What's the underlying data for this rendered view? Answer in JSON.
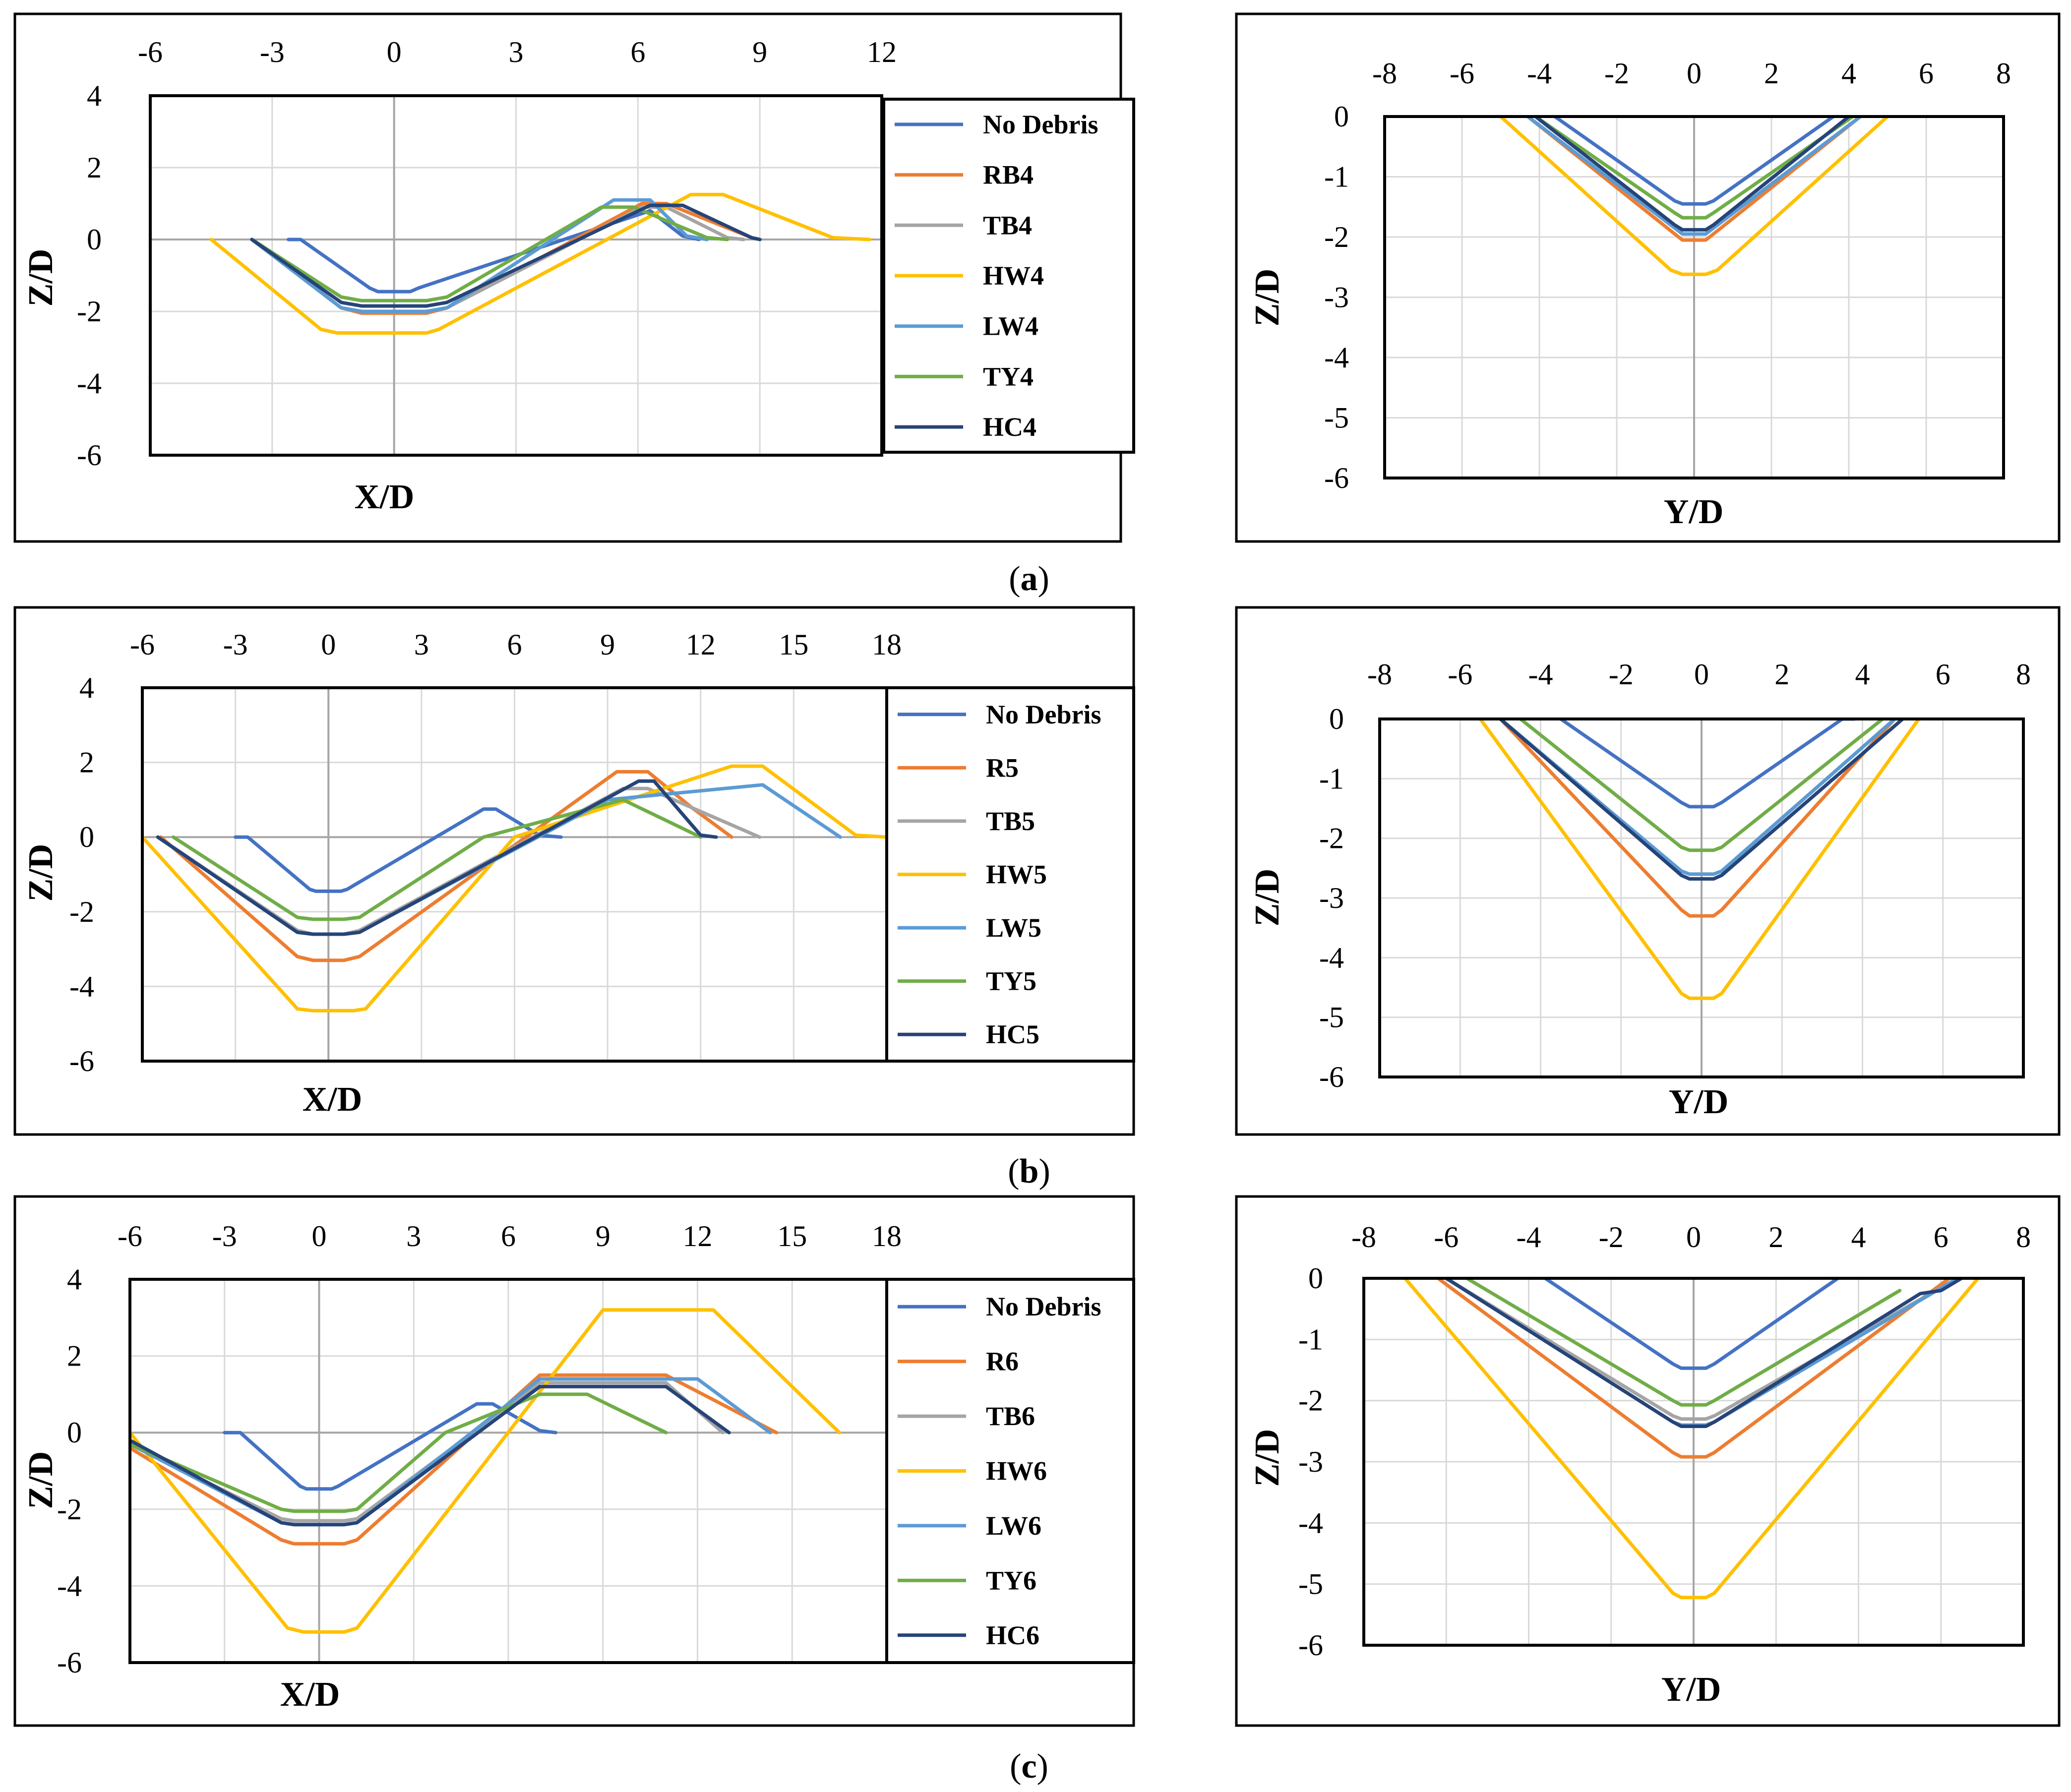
{
  "figure": {
    "captions": [
      {
        "letter": "a"
      },
      {
        "letter": "b"
      },
      {
        "letter": "c"
      }
    ]
  },
  "colors": {
    "No Debris": "#4472C4",
    "RB4": "#ED7D31",
    "R5": "#ED7D31",
    "R6": "#ED7D31",
    "TB4": "#A5A5A5",
    "TB5": "#A5A5A5",
    "TB6": "#A5A5A5",
    "HW4": "#FFC000",
    "HW5": "#FFC000",
    "HW6": "#FFC000",
    "LW4": "#5B9BD5",
    "LW5": "#5B9BD5",
    "LW6": "#5B9BD5",
    "TY4": "#70AD47",
    "TY5": "#70AD47",
    "TY6": "#70AD47",
    "HC4": "#264478",
    "HC5": "#264478",
    "HC6": "#264478"
  },
  "chart_data": [
    {
      "id": "a-left",
      "type": "line",
      "xlabel": "X/D",
      "ylabel": "Z/D",
      "xlim": [
        -6,
        12
      ],
      "ylim": [
        -6,
        4
      ],
      "xticks": [
        "-6",
        "-3",
        "0",
        "3",
        "6",
        "9",
        "12"
      ],
      "yticks": [
        "4",
        "2",
        "0",
        "-2",
        "-4",
        "-6"
      ],
      "legend": [
        "No Debris",
        "RB4",
        "TB4",
        "HW4",
        "LW4",
        "TY4",
        "HC4"
      ],
      "series": [
        {
          "name": "No Debris",
          "x": [
            -2.6,
            -2.3,
            -0.6,
            -0.4,
            0.4,
            0.6,
            6.3,
            7.1,
            7.5
          ],
          "y": [
            0,
            0,
            -1.35,
            -1.45,
            -1.45,
            -1.35,
            0.8,
            0.1,
            0
          ]
        },
        {
          "name": "RB4",
          "x": [
            -3.5,
            -1.3,
            -0.8,
            0.8,
            1.3,
            6.1,
            6.7,
            8.8,
            9.0
          ],
          "y": [
            0,
            -1.9,
            -2.05,
            -2.05,
            -1.9,
            1.0,
            1.0,
            0.05,
            0
          ]
        },
        {
          "name": "TB4",
          "x": [
            -3.5,
            -1.3,
            -0.8,
            0.8,
            1.3,
            6.1,
            6.7,
            8.2,
            8.6
          ],
          "y": [
            0,
            -1.9,
            -2.0,
            -2.0,
            -1.9,
            0.9,
            0.9,
            0.05,
            0
          ]
        },
        {
          "name": "HW4",
          "x": [
            -4.5,
            -1.8,
            -1.4,
            0.8,
            1.1,
            7.3,
            8.1,
            10.8,
            11.7
          ],
          "y": [
            0,
            -2.5,
            -2.6,
            -2.6,
            -2.5,
            1.25,
            1.25,
            0.05,
            0
          ]
        },
        {
          "name": "LW4",
          "x": [
            -3.5,
            -1.3,
            -0.8,
            0.8,
            1.3,
            5.4,
            6.3,
            7.2,
            7.7
          ],
          "y": [
            0,
            -1.9,
            -2.0,
            -2.0,
            -1.9,
            1.1,
            1.1,
            0.1,
            0
          ]
        },
        {
          "name": "TY4",
          "x": [
            -3.5,
            -1.3,
            -0.8,
            0.8,
            1.3,
            5.1,
            5.9,
            7.7,
            8.2
          ],
          "y": [
            0,
            -1.6,
            -1.7,
            -1.7,
            -1.6,
            0.9,
            0.9,
            0.05,
            0
          ]
        },
        {
          "name": "HC4",
          "x": [
            -3.5,
            -1.3,
            -0.8,
            0.8,
            1.3,
            6.3,
            7.1,
            8.8,
            9.0
          ],
          "y": [
            0,
            -1.75,
            -1.85,
            -1.85,
            -1.75,
            0.95,
            0.95,
            0.05,
            0
          ]
        }
      ]
    },
    {
      "id": "a-right",
      "type": "line",
      "xlabel": "Y/D",
      "ylabel": "Z/D",
      "xlim": [
        -8,
        8
      ],
      "ylim": [
        -6,
        0
      ],
      "xticks": [
        "-8",
        "-6",
        "-4",
        "-2",
        "0",
        "2",
        "4",
        "6",
        "8"
      ],
      "yticks": [
        "0",
        "-1",
        "-2",
        "-3",
        "-4",
        "-5",
        "-6"
      ],
      "series": [
        {
          "name": "No Debris",
          "x": [
            -3.6,
            -0.5,
            -0.3,
            0.3,
            0.5,
            3.6
          ],
          "y": [
            0,
            -1.4,
            -1.45,
            -1.45,
            -1.4,
            0
          ]
        },
        {
          "name": "RB4",
          "x": [
            -4.3,
            -0.5,
            -0.3,
            0.3,
            0.5,
            4.3
          ],
          "y": [
            0,
            -1.95,
            -2.05,
            -2.05,
            -1.95,
            0
          ]
        },
        {
          "name": "TB4",
          "x": [
            -4.3,
            -0.5,
            -0.3,
            0.3,
            0.5,
            4.3
          ],
          "y": [
            0,
            -1.85,
            -1.95,
            -1.95,
            -1.85,
            0
          ]
        },
        {
          "name": "HW4",
          "x": [
            -5.0,
            -0.6,
            -0.3,
            0.3,
            0.6,
            5.0
          ],
          "y": [
            0,
            -2.55,
            -2.62,
            -2.62,
            -2.55,
            0
          ]
        },
        {
          "name": "LW4",
          "x": [
            -4.3,
            -0.5,
            -0.3,
            0.3,
            0.5,
            4.3
          ],
          "y": [
            0,
            -1.85,
            -1.95,
            -1.95,
            -1.85,
            0
          ]
        },
        {
          "name": "TY4",
          "x": [
            -4.1,
            -0.5,
            -0.3,
            0.3,
            0.5,
            4.1
          ],
          "y": [
            0,
            -1.6,
            -1.68,
            -1.68,
            -1.6,
            0
          ]
        },
        {
          "name": "HC4",
          "x": [
            -4.1,
            -0.5,
            -0.3,
            0.3,
            0.5,
            4.0
          ],
          "y": [
            0,
            -1.8,
            -1.88,
            -1.88,
            -1.8,
            0
          ]
        }
      ]
    },
    {
      "id": "b-left",
      "type": "line",
      "xlabel": "X/D",
      "ylabel": "Z/D",
      "xlim": [
        -6,
        18
      ],
      "ylim": [
        -6,
        4
      ],
      "xticks": [
        "-6",
        "-3",
        "0",
        "3",
        "6",
        "9",
        "12",
        "15",
        "18"
      ],
      "yticks": [
        "4",
        "2",
        "0",
        "-2",
        "-4",
        "-6"
      ],
      "legend": [
        "No Debris",
        "R5",
        "TB5",
        "HW5",
        "LW5",
        "TY5",
        "HC5"
      ],
      "series": [
        {
          "name": "No Debris",
          "x": [
            -3.0,
            -2.6,
            -0.6,
            -0.4,
            0.4,
            0.6,
            5.0,
            5.4,
            6.8,
            7.5
          ],
          "y": [
            0,
            0,
            -1.4,
            -1.45,
            -1.45,
            -1.4,
            0.75,
            0.75,
            0.05,
            0
          ]
        },
        {
          "name": "R5",
          "x": [
            -5.4,
            -1.0,
            -0.5,
            0.5,
            1.0,
            9.3,
            10.3,
            11.7,
            13.0
          ],
          "y": [
            0,
            -3.2,
            -3.3,
            -3.3,
            -3.2,
            1.75,
            1.75,
            0.8,
            0
          ]
        },
        {
          "name": "TB5",
          "x": [
            -5.5,
            -1.0,
            -0.5,
            0.5,
            1.0,
            9.5,
            10.3,
            13.9
          ],
          "y": [
            0,
            -2.5,
            -2.6,
            -2.6,
            -2.5,
            1.3,
            1.3,
            0
          ]
        },
        {
          "name": "HW5",
          "x": [
            -6.0,
            -1.0,
            -0.5,
            0.8,
            1.2,
            6.0,
            13.0,
            14.0,
            17.0,
            18.0
          ],
          "y": [
            0,
            -4.6,
            -4.65,
            -4.65,
            -4.6,
            0,
            1.9,
            1.9,
            0.05,
            0
          ]
        },
        {
          "name": "LW5",
          "x": [
            -5.5,
            -1.0,
            -0.5,
            0.5,
            1.0,
            9.0,
            14.0,
            16.5
          ],
          "y": [
            0,
            -2.55,
            -2.6,
            -2.6,
            -2.55,
            1.0,
            1.4,
            0
          ]
        },
        {
          "name": "TY5",
          "x": [
            -5.0,
            -1.0,
            -0.5,
            0.5,
            1.0,
            5.0,
            9.5,
            12.0
          ],
          "y": [
            0,
            -2.15,
            -2.2,
            -2.2,
            -2.15,
            0,
            1.0,
            0
          ]
        },
        {
          "name": "HC5",
          "x": [
            -5.5,
            -1.0,
            -0.5,
            0.5,
            1.0,
            10.0,
            10.5,
            12.0,
            12.5
          ],
          "y": [
            0,
            -2.55,
            -2.6,
            -2.6,
            -2.55,
            1.5,
            1.5,
            0.05,
            0
          ]
        }
      ]
    },
    {
      "id": "b-right",
      "type": "line",
      "xlabel": "Y/D",
      "ylabel": "Z/D",
      "xlim": [
        -8,
        8
      ],
      "ylim": [
        -6,
        0
      ],
      "xticks": [
        "-8",
        "-6",
        "-4",
        "-2",
        "0",
        "2",
        "4",
        "6",
        "8"
      ],
      "yticks": [
        "0",
        "-1",
        "-2",
        "-3",
        "-4",
        "-5",
        "-6"
      ],
      "series": [
        {
          "name": "No Debris",
          "x": [
            -3.5,
            -0.5,
            -0.3,
            0.3,
            0.5,
            3.5,
            3.8
          ],
          "y": [
            0,
            -1.4,
            -1.47,
            -1.47,
            -1.4,
            0,
            0
          ]
        },
        {
          "name": "R5",
          "x": [
            -5.0,
            -0.5,
            -0.3,
            0.3,
            0.5,
            4.8
          ],
          "y": [
            0,
            -3.2,
            -3.3,
            -3.3,
            -3.2,
            0
          ]
        },
        {
          "name": "TB5",
          "x": [
            -5.0,
            -0.5,
            -0.3,
            0.3,
            0.5,
            4.8
          ],
          "y": [
            0,
            -2.55,
            -2.6,
            -2.6,
            -2.55,
            0
          ]
        },
        {
          "name": "HW5",
          "x": [
            -5.5,
            -0.5,
            -0.3,
            0.3,
            0.5,
            5.4
          ],
          "y": [
            0,
            -4.6,
            -4.68,
            -4.68,
            -4.6,
            0
          ]
        },
        {
          "name": "LW5",
          "x": [
            -5.0,
            -0.5,
            -0.3,
            0.3,
            0.5,
            4.8
          ],
          "y": [
            0,
            -2.55,
            -2.6,
            -2.6,
            -2.55,
            0
          ]
        },
        {
          "name": "TY5",
          "x": [
            -4.5,
            -0.5,
            -0.3,
            0.3,
            0.5,
            4.5
          ],
          "y": [
            0,
            -2.15,
            -2.2,
            -2.2,
            -2.15,
            0
          ]
        },
        {
          "name": "HC5",
          "x": [
            -5.0,
            -0.5,
            -0.3,
            0.3,
            0.5,
            5.0
          ],
          "y": [
            0,
            -2.62,
            -2.68,
            -2.68,
            -2.62,
            0
          ]
        }
      ]
    },
    {
      "id": "c-left",
      "type": "line",
      "xlabel": "X/D",
      "ylabel": "Z/D",
      "xlim": [
        -6,
        18
      ],
      "ylim": [
        -6,
        4
      ],
      "xticks": [
        "-6",
        "-3",
        "0",
        "3",
        "6",
        "9",
        "12",
        "15",
        "18"
      ],
      "yticks": [
        "4",
        "2",
        "0",
        "-2",
        "-4",
        "-6"
      ],
      "legend": [
        "No Debris",
        "R6",
        "TB6",
        "HW6",
        "LW6",
        "TY6",
        "HC6"
      ],
      "series": [
        {
          "name": "No Debris",
          "x": [
            -3.0,
            -2.5,
            -0.6,
            -0.4,
            0.4,
            0.6,
            5.0,
            5.5,
            7.0,
            7.5
          ],
          "y": [
            0,
            0,
            -1.4,
            -1.47,
            -1.47,
            -1.4,
            0.75,
            0.75,
            0.05,
            0
          ]
        },
        {
          "name": "R6",
          "x": [
            -6.0,
            -1.2,
            -0.8,
            0.8,
            1.2,
            7.0,
            11.0,
            14.5
          ],
          "y": [
            -0.4,
            -2.8,
            -2.9,
            -2.9,
            -2.8,
            1.5,
            1.5,
            0
          ]
        },
        {
          "name": "TB6",
          "x": [
            -6.0,
            -1.2,
            -0.8,
            0.8,
            1.2,
            7.0,
            11.0,
            12.8
          ],
          "y": [
            -0.3,
            -2.25,
            -2.3,
            -2.3,
            -2.25,
            1.3,
            1.3,
            0
          ]
        },
        {
          "name": "HW6",
          "x": [
            -6.0,
            -1.0,
            -0.5,
            0.8,
            1.2,
            9.0,
            12.5,
            16.5
          ],
          "y": [
            0,
            -5.1,
            -5.2,
            -5.2,
            -5.1,
            3.2,
            3.2,
            0
          ]
        },
        {
          "name": "LW6",
          "x": [
            -6.0,
            -1.2,
            -0.8,
            0.8,
            1.2,
            7.0,
            12.0,
            14.3
          ],
          "y": [
            -0.3,
            -2.35,
            -2.4,
            -2.4,
            -2.35,
            1.4,
            1.4,
            0
          ]
        },
        {
          "name": "TY6",
          "x": [
            -6.0,
            -1.2,
            -0.8,
            0.8,
            1.2,
            4.0,
            7.0,
            8.5,
            11.0
          ],
          "y": [
            -0.3,
            -2.0,
            -2.05,
            -2.05,
            -2.0,
            0,
            1.0,
            1.0,
            0
          ]
        },
        {
          "name": "HC6",
          "x": [
            -6.0,
            -1.2,
            -0.8,
            0.8,
            1.2,
            7.0,
            11.0,
            13.0
          ],
          "y": [
            -0.2,
            -2.35,
            -2.4,
            -2.4,
            -2.35,
            1.2,
            1.2,
            0
          ]
        }
      ]
    },
    {
      "id": "c-right",
      "type": "line",
      "xlabel": "Y/D",
      "ylabel": "Z/D",
      "xlim": [
        -8,
        8
      ],
      "ylim": [
        -6,
        0
      ],
      "xticks": [
        "-8",
        "-6",
        "-4",
        "-2",
        "0",
        "2",
        "4",
        "6",
        "8"
      ],
      "yticks": [
        "0",
        "-1",
        "-2",
        "-3",
        "-4",
        "-5",
        "-6"
      ],
      "series": [
        {
          "name": "No Debris",
          "x": [
            -3.6,
            -0.5,
            -0.3,
            0.3,
            0.5,
            3.5
          ],
          "y": [
            0,
            -1.4,
            -1.47,
            -1.47,
            -1.4,
            0
          ]
        },
        {
          "name": "R6",
          "x": [
            -6.2,
            -0.5,
            -0.3,
            0.3,
            0.5,
            6.2
          ],
          "y": [
            0,
            -2.85,
            -2.92,
            -2.92,
            -2.85,
            0
          ]
        },
        {
          "name": "TB6",
          "x": [
            -6.0,
            -0.5,
            -0.3,
            0.3,
            0.5,
            6.4
          ],
          "y": [
            0,
            -2.25,
            -2.3,
            -2.3,
            -2.25,
            0
          ]
        },
        {
          "name": "HW6",
          "x": [
            -7.0,
            -0.5,
            -0.3,
            0.3,
            0.5,
            6.9
          ],
          "y": [
            0,
            -5.15,
            -5.22,
            -5.22,
            -5.15,
            0
          ]
        },
        {
          "name": "LW6",
          "x": [
            -6.0,
            -0.5,
            -0.3,
            0.3,
            0.5,
            6.4
          ],
          "y": [
            0,
            -2.35,
            -2.4,
            -2.4,
            -2.35,
            0
          ]
        },
        {
          "name": "TY6",
          "x": [
            -5.5,
            -0.5,
            -0.3,
            0.3,
            0.5,
            5.0
          ],
          "y": [
            0,
            -2.0,
            -2.07,
            -2.07,
            -2.0,
            -0.2
          ]
        },
        {
          "name": "HC6",
          "x": [
            -6.0,
            -0.5,
            -0.3,
            0.3,
            0.5,
            5.5,
            6.0,
            6.5
          ],
          "y": [
            0,
            -2.35,
            -2.42,
            -2.42,
            -2.35,
            -0.25,
            -0.2,
            0
          ]
        }
      ]
    }
  ]
}
